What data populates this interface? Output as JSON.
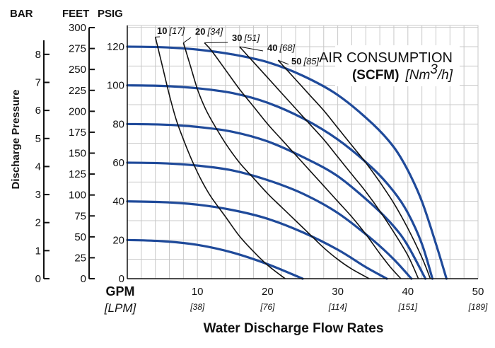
{
  "header": {
    "bar": "BAR",
    "feet": "FEET",
    "psig": "PSIG"
  },
  "legend": {
    "line1": "AIR CONSUMPTION",
    "line2_bold": "(SCFM)",
    "line2_italic_pre": "[Nm",
    "line2_sup": "3",
    "line2_italic_post": "/h]"
  },
  "chart_data": {
    "type": "line",
    "xlabel": "Water Discharge Flow Rates",
    "ylabel": "Discharge Pressure",
    "x_unit_main": "GPM",
    "x_unit_sub": "[LPM]",
    "xlim": [
      0,
      50
    ],
    "ylim": [
      0,
      130
    ],
    "x_ticks": [
      {
        "value": 10,
        "label": "10",
        "sub": "[38]"
      },
      {
        "value": 20,
        "label": "20",
        "sub": "[76]"
      },
      {
        "value": 30,
        "label": "30",
        "sub": "[114]"
      },
      {
        "value": 40,
        "label": "40",
        "sub": "[151]"
      },
      {
        "value": 50,
        "label": "50",
        "sub": "[189]"
      }
    ],
    "psig_ticks": [
      0,
      20,
      40,
      60,
      80,
      100,
      120
    ],
    "feet_ticks": [
      {
        "value": 0,
        "label": "0"
      },
      {
        "value": 25,
        "label": "25"
      },
      {
        "value": 50,
        "label": "50"
      },
      {
        "value": 75,
        "label": "75"
      },
      {
        "value": 100,
        "label": "100"
      },
      {
        "value": 125,
        "label": "125"
      },
      {
        "value": 150,
        "label": "150"
      },
      {
        "value": 175,
        "label": "175"
      },
      {
        "value": 200,
        "label": "200"
      },
      {
        "value": 225,
        "label": "225"
      },
      {
        "value": 250,
        "label": "250"
      },
      {
        "value": 275,
        "label": "275"
      },
      {
        "value": 300,
        "label": "300"
      }
    ],
    "bar_ticks": [
      {
        "value": 0,
        "label": "0"
      },
      {
        "value": 1,
        "label": "1"
      },
      {
        "value": 2,
        "label": "2"
      },
      {
        "value": 3,
        "label": "3"
      },
      {
        "value": 4,
        "label": "4"
      },
      {
        "value": 5,
        "label": "5"
      },
      {
        "value": 6,
        "label": "6"
      },
      {
        "value": 7,
        "label": "7"
      },
      {
        "value": 8,
        "label": "8"
      }
    ],
    "grid": true,
    "pressure_curves": [
      {
        "x": [
          0,
          5,
          10,
          15,
          20,
          25,
          30,
          35,
          38,
          40,
          42,
          44,
          45.5
        ],
        "y": [
          120,
          119.7,
          118.5,
          116,
          112,
          105,
          95,
          80,
          68,
          56,
          40,
          18,
          0
        ]
      },
      {
        "x": [
          0,
          5,
          10,
          15,
          20,
          25,
          30,
          35,
          38,
          40,
          42,
          43.5
        ],
        "y": [
          100,
          99.7,
          98.5,
          96,
          91,
          83,
          72,
          57,
          45,
          34,
          18,
          0
        ]
      },
      {
        "x": [
          0,
          5,
          10,
          15,
          20,
          25,
          30,
          35,
          38,
          40,
          42.5
        ],
        "y": [
          80,
          79.7,
          78.5,
          76,
          71,
          63,
          53,
          38,
          27,
          17,
          0
        ]
      },
      {
        "x": [
          0,
          5,
          10,
          15,
          20,
          25,
          30,
          35,
          38,
          40.5
        ],
        "y": [
          60,
          59.7,
          58.5,
          56,
          51,
          44,
          34,
          20,
          10,
          0
        ]
      },
      {
        "x": [
          0,
          5,
          10,
          15,
          20,
          25,
          30,
          34,
          37
        ],
        "y": [
          40,
          39.6,
          38.3,
          35.5,
          31,
          24,
          15,
          6,
          0
        ]
      },
      {
        "x": [
          0,
          5,
          10,
          15,
          20,
          25
        ],
        "y": [
          20,
          19.4,
          17.5,
          13.5,
          7.5,
          0
        ]
      }
    ],
    "air_curves": [
      {
        "label": "10",
        "sub": "[17]",
        "x": [
          4,
          5,
          6,
          7,
          8,
          9,
          10,
          11,
          12,
          14,
          16,
          18,
          20,
          22.5
        ],
        "y": [
          125,
          110,
          95,
          82,
          72,
          63,
          55,
          48,
          42,
          32,
          22,
          14,
          7,
          0
        ]
      },
      {
        "label": "20",
        "sub": "[34]",
        "x": [
          8,
          9,
          10,
          11,
          12,
          14,
          16,
          18,
          20,
          22,
          24,
          26,
          28,
          30,
          32,
          34.5
        ],
        "y": [
          122,
          110,
          98,
          89,
          82,
          70,
          60,
          52,
          44,
          37,
          30,
          23,
          16,
          10,
          5,
          0
        ]
      },
      {
        "label": "30",
        "sub": "[51]",
        "x": [
          11,
          12,
          14,
          16,
          18,
          20,
          22,
          24,
          26,
          28,
          30,
          32,
          34,
          36,
          37.5,
          39
        ],
        "y": [
          122,
          118,
          108,
          98,
          89,
          80,
          72,
          64,
          56,
          48,
          40,
          32,
          23,
          13,
          6,
          0
        ]
      },
      {
        "label": "40",
        "sub": "[68]",
        "x": [
          16,
          18,
          20,
          22,
          24,
          26,
          28,
          30,
          32,
          34,
          36,
          38,
          40,
          41.5
        ],
        "y": [
          120,
          112,
          104,
          96,
          88,
          80,
          72,
          63,
          54,
          45,
          35,
          24,
          12,
          0
        ]
      },
      {
        "label": "50",
        "sub": "[85]",
        "x": [
          21.5,
          24,
          26,
          28,
          30,
          32,
          34,
          36,
          38,
          40,
          42,
          43.2
        ],
        "y": [
          113,
          103,
          95,
          87,
          78,
          69,
          60,
          50,
          39,
          26,
          11,
          0
        ]
      }
    ]
  }
}
